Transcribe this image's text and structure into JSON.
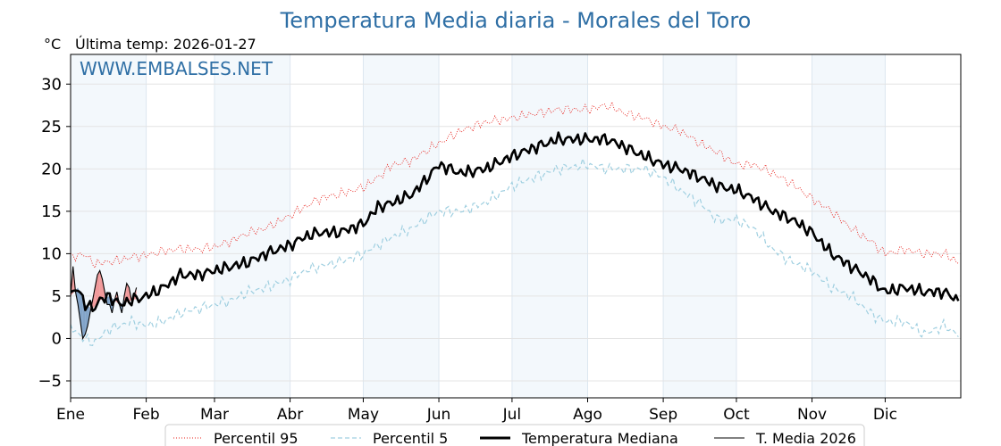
{
  "chart_data": {
    "type": "line",
    "title": "Temperatura Media diaria - Morales del Toro",
    "unit": "°C",
    "last_temp_label": "Última temp: 2026-01-27",
    "watermark": "WWW.EMBALSES.NET",
    "ylim": [
      -7,
      33.5
    ],
    "yticks": [
      -5,
      0,
      5,
      10,
      15,
      20,
      25,
      30
    ],
    "month_ticks": [
      {
        "label": "Ene",
        "day": 0
      },
      {
        "label": "Feb",
        "day": 31
      },
      {
        "label": "Mar",
        "day": 59
      },
      {
        "label": "Abr",
        "day": 90
      },
      {
        "label": "May",
        "day": 120
      },
      {
        "label": "Jun",
        "day": 151
      },
      {
        "label": "Jul",
        "day": 181
      },
      {
        "label": "Ago",
        "day": 212
      },
      {
        "label": "Sep",
        "day": 243
      },
      {
        "label": "Oct",
        "day": 273
      },
      {
        "label": "Nov",
        "day": 304
      },
      {
        "label": "Dic",
        "day": 334
      }
    ],
    "grid": true,
    "legend_position": "bottom",
    "series": [
      {
        "name": "Percentil 95",
        "color": "#e8201a",
        "style": "dotted",
        "points": [
          [
            0,
            9.5
          ],
          [
            5,
            10
          ],
          [
            10,
            8.8
          ],
          [
            15,
            9
          ],
          [
            20,
            9.2
          ],
          [
            25,
            9.6
          ],
          [
            31,
            9.8
          ],
          [
            38,
            10.3
          ],
          [
            45,
            10.6
          ],
          [
            52,
            10.5
          ],
          [
            59,
            10.8
          ],
          [
            66,
            11.5
          ],
          [
            73,
            12.5
          ],
          [
            80,
            13
          ],
          [
            90,
            14.5
          ],
          [
            96,
            15.5
          ],
          [
            102,
            16.5
          ],
          [
            110,
            17
          ],
          [
            120,
            17.8
          ],
          [
            126,
            19
          ],
          [
            132,
            20.5
          ],
          [
            140,
            21
          ],
          [
            145,
            22
          ],
          [
            151,
            23
          ],
          [
            160,
            24.5
          ],
          [
            170,
            25.5
          ],
          [
            181,
            26
          ],
          [
            190,
            26.5
          ],
          [
            200,
            27
          ],
          [
            212,
            27
          ],
          [
            220,
            27.5
          ],
          [
            228,
            26.5
          ],
          [
            235,
            26
          ],
          [
            243,
            25
          ],
          [
            250,
            24.5
          ],
          [
            258,
            23
          ],
          [
            265,
            22
          ],
          [
            273,
            20.5
          ],
          [
            280,
            20.5
          ],
          [
            288,
            19.5
          ],
          [
            296,
            18.2
          ],
          [
            304,
            16.5
          ],
          [
            312,
            15
          ],
          [
            320,
            13
          ],
          [
            328,
            11.5
          ],
          [
            334,
            10
          ],
          [
            342,
            10.5
          ],
          [
            350,
            10
          ],
          [
            358,
            10
          ],
          [
            364,
            9
          ]
        ]
      },
      {
        "name": "Percentil 5",
        "color": "#9fcfe0",
        "style": "dashed",
        "points": [
          [
            0,
            1.5
          ],
          [
            5,
            0
          ],
          [
            10,
            -0.5
          ],
          [
            15,
            1
          ],
          [
            20,
            1.5
          ],
          [
            25,
            2
          ],
          [
            31,
            1.5
          ],
          [
            38,
            2
          ],
          [
            45,
            3
          ],
          [
            52,
            3.5
          ],
          [
            59,
            4
          ],
          [
            66,
            4.5
          ],
          [
            73,
            5.5
          ],
          [
            80,
            6
          ],
          [
            90,
            7
          ],
          [
            96,
            8
          ],
          [
            102,
            8.5
          ],
          [
            110,
            9
          ],
          [
            120,
            10
          ],
          [
            126,
            11
          ],
          [
            132,
            12
          ],
          [
            140,
            13
          ],
          [
            145,
            14
          ],
          [
            151,
            15
          ],
          [
            160,
            15
          ],
          [
            170,
            16
          ],
          [
            181,
            18
          ],
          [
            190,
            19
          ],
          [
            200,
            20
          ],
          [
            212,
            20.5
          ],
          [
            220,
            20
          ],
          [
            228,
            20
          ],
          [
            235,
            20
          ],
          [
            243,
            19
          ],
          [
            250,
            17.5
          ],
          [
            258,
            16
          ],
          [
            265,
            14
          ],
          [
            273,
            14
          ],
          [
            280,
            13
          ],
          [
            288,
            10.5
          ],
          [
            296,
            9
          ],
          [
            304,
            8
          ],
          [
            312,
            6
          ],
          [
            320,
            5
          ],
          [
            328,
            3
          ],
          [
            334,
            2
          ],
          [
            342,
            2
          ],
          [
            350,
            0.5
          ],
          [
            358,
            1.5
          ],
          [
            364,
            0.5
          ]
        ]
      },
      {
        "name": "Temperatura Mediana",
        "color": "#000000",
        "style": "solid-thick",
        "points": [
          [
            0,
            5
          ],
          [
            3,
            6
          ],
          [
            6,
            4
          ],
          [
            9,
            3.5
          ],
          [
            12,
            4.5
          ],
          [
            16,
            5
          ],
          [
            20,
            4
          ],
          [
            25,
            4.5
          ],
          [
            31,
            5
          ],
          [
            38,
            6
          ],
          [
            45,
            7.5
          ],
          [
            52,
            7.5
          ],
          [
            59,
            8
          ],
          [
            66,
            8.5
          ],
          [
            73,
            9
          ],
          [
            80,
            10
          ],
          [
            90,
            11
          ],
          [
            96,
            12
          ],
          [
            102,
            12.5
          ],
          [
            110,
            12.5
          ],
          [
            120,
            13.5
          ],
          [
            126,
            15.5
          ],
          [
            132,
            16
          ],
          [
            140,
            17
          ],
          [
            145,
            18.5
          ],
          [
            151,
            20.5
          ],
          [
            160,
            19.5
          ],
          [
            170,
            20
          ],
          [
            181,
            21.5
          ],
          [
            190,
            22.5
          ],
          [
            200,
            23.5
          ],
          [
            212,
            23.5
          ],
          [
            220,
            23.5
          ],
          [
            228,
            22.5
          ],
          [
            235,
            21.5
          ],
          [
            243,
            20.5
          ],
          [
            250,
            20
          ],
          [
            258,
            19
          ],
          [
            265,
            18
          ],
          [
            273,
            17.5
          ],
          [
            280,
            16.5
          ],
          [
            288,
            15
          ],
          [
            296,
            14
          ],
          [
            304,
            12.5
          ],
          [
            312,
            10
          ],
          [
            320,
            8.5
          ],
          [
            328,
            7
          ],
          [
            334,
            5.5
          ],
          [
            342,
            6
          ],
          [
            350,
            5.5
          ],
          [
            358,
            5.5
          ],
          [
            364,
            4.5
          ]
        ]
      },
      {
        "name": "T. Media 2026",
        "color": "#000000",
        "style": "solid-thin",
        "points": [
          [
            0,
            5
          ],
          [
            1,
            8.5
          ],
          [
            2,
            5.5
          ],
          [
            3,
            4
          ],
          [
            4,
            2
          ],
          [
            5,
            0
          ],
          [
            6,
            0.5
          ],
          [
            7,
            1.5
          ],
          [
            8,
            3
          ],
          [
            9,
            4.5
          ],
          [
            10,
            6
          ],
          [
            11,
            7.5
          ],
          [
            12,
            8
          ],
          [
            13,
            7
          ],
          [
            14,
            5.5
          ],
          [
            15,
            4
          ],
          [
            16,
            4
          ],
          [
            17,
            3
          ],
          [
            18,
            4.5
          ],
          [
            19,
            5.5
          ],
          [
            20,
            4
          ],
          [
            21,
            3
          ],
          [
            22,
            5
          ],
          [
            23,
            6.5
          ],
          [
            24,
            6
          ],
          [
            25,
            4.5
          ],
          [
            26,
            5
          ],
          [
            27,
            6
          ]
        ]
      }
    ]
  },
  "legend": {
    "p95_label": "Percentil 95",
    "p5_label": "Percentil 5",
    "median_label": "Temperatura Mediana",
    "current_label": "T. Media 2026"
  }
}
